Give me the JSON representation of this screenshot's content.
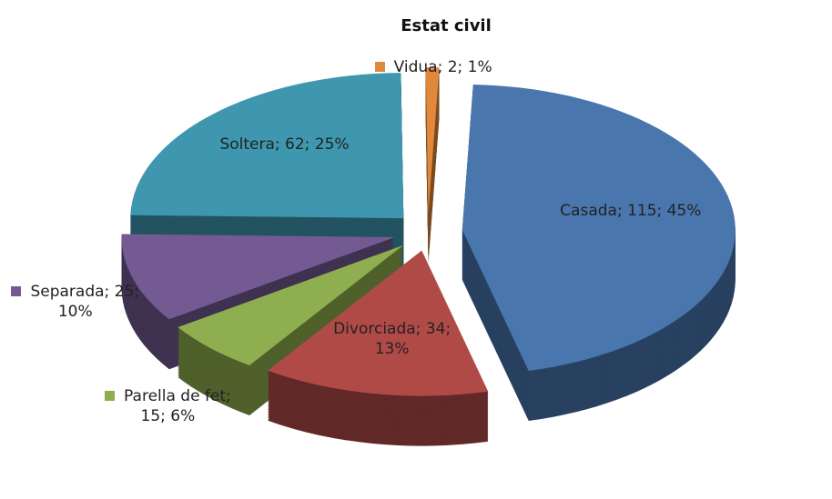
{
  "chart_data": {
    "type": "pie",
    "title": "Estat civil",
    "values": [
      115,
      34,
      15,
      25,
      62,
      2
    ],
    "value_labels": [
      "Casada; 115; 45%",
      "Divorciada; 34; 13%",
      "Parella de fet; 15; 6%",
      "Separada; 25; 10%",
      "Soltera; 62; 25%",
      "Vidua; 2; 1%"
    ],
    "colors": [
      "#4a76ae",
      "#b04a47",
      "#8fae4f",
      "#735a93",
      "#3e97ae",
      "#e0893b"
    ]
  }
}
